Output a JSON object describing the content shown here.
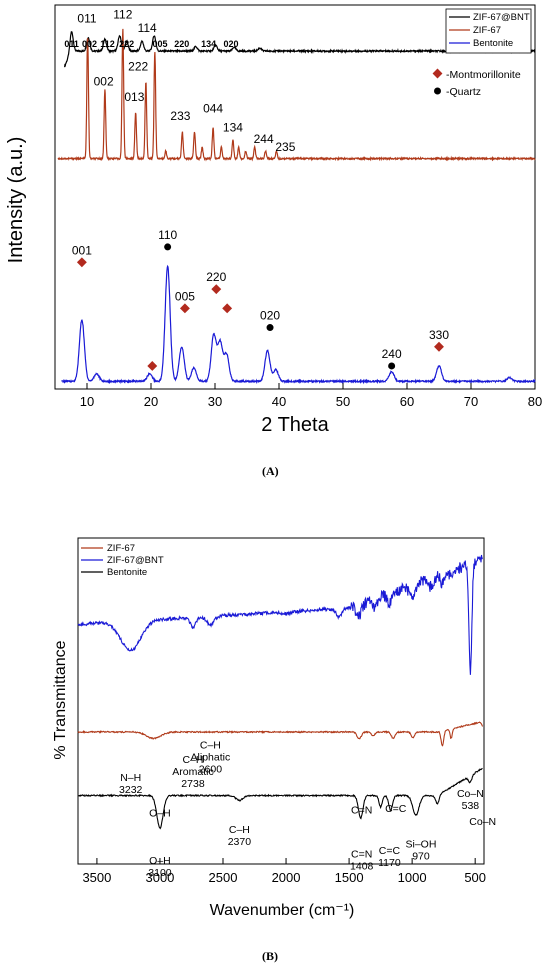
{
  "panel_a_label": "(A)",
  "panel_b_label": "(B)",
  "colors": {
    "black": "#000000",
    "red": "#b03a1a",
    "blue": "#1a1ad6",
    "marker_red": "#b22a1e"
  },
  "chart_data": [
    {
      "id": "A",
      "type": "line",
      "xlabel": "2 Theta",
      "ylabel": "Intensity (a.u.)",
      "xlim": [
        5,
        80
      ],
      "xticks": [
        "10",
        "20",
        "30",
        "40",
        "50",
        "60",
        "70",
        "80"
      ],
      "legend": {
        "position": "top-right",
        "entries": [
          {
            "name": "ZIF-67@BNT",
            "color": "#000000"
          },
          {
            "name": "ZIF-67",
            "color": "#b03a1a"
          },
          {
            "name": "Bentonite",
            "color": "#1a1ad6"
          }
        ]
      },
      "marker_legend": [
        {
          "symbol": "diamond",
          "label": "-Montmorillonite",
          "color": "#b22a1e"
        },
        {
          "symbol": "circle",
          "label": "-Quartz",
          "color": "#000000"
        }
      ],
      "series": [
        {
          "name": "ZIF-67@BNT",
          "color": "#000000",
          "baseline": 0.88,
          "peaks": [
            [
              7.6,
              0.05
            ],
            [
              10.2,
              0.035
            ],
            [
              12.8,
              0.03
            ],
            [
              15.1,
              0.04
            ],
            [
              16.2,
              0.025
            ],
            [
              18.6,
              0.025
            ],
            [
              20.5,
              0.04
            ],
            [
              27,
              0.012
            ],
            [
              30.1,
              0.015
            ],
            [
              33,
              0.01
            ],
            [
              37,
              0.008
            ]
          ]
        },
        {
          "name": "ZIF-67",
          "color": "#b03a1a",
          "baseline": 0.6,
          "peaks": [
            [
              10.1,
              0.32
            ],
            [
              12.8,
              0.18
            ],
            [
              15.6,
              0.34
            ],
            [
              17.6,
              0.12
            ],
            [
              19.2,
              0.2
            ],
            [
              20.6,
              0.28
            ],
            [
              22.3,
              0.02
            ],
            [
              24.9,
              0.07
            ],
            [
              26.8,
              0.07
            ],
            [
              28.0,
              0.03
            ],
            [
              29.7,
              0.08
            ],
            [
              31.0,
              0.03
            ],
            [
              32.8,
              0.05
            ],
            [
              33.7,
              0.03
            ],
            [
              34.8,
              0.02
            ],
            [
              36.2,
              0.03
            ],
            [
              37.9,
              0.02
            ],
            [
              39.6,
              0.02
            ]
          ]
        },
        {
          "name": "Bentonite",
          "color": "#1a1ad6",
          "baseline": 0.02,
          "peaks": [
            [
              9.2,
              0.16
            ],
            [
              11.5,
              0.02
            ],
            [
              19.8,
              0.02
            ],
            [
              22.6,
              0.3
            ],
            [
              24.8,
              0.09
            ],
            [
              26.7,
              0.035
            ],
            [
              29.8,
              0.12
            ],
            [
              30.8,
              0.1
            ],
            [
              31.8,
              0.07
            ],
            [
              38.2,
              0.08
            ],
            [
              39.5,
              0.03
            ],
            [
              57.6,
              0.025
            ],
            [
              65.0,
              0.04
            ],
            [
              76.0,
              0.01
            ]
          ]
        }
      ],
      "peak_labels_zif67bnt": [
        {
          "x": 7.6,
          "text": "011"
        },
        {
          "x": 10.4,
          "text": "002"
        },
        {
          "x": 13.2,
          "text": "112"
        },
        {
          "x": 16.2,
          "text": "222"
        },
        {
          "x": 21.4,
          "text": "005"
        },
        {
          "x": 24.8,
          "text": "220"
        },
        {
          "x": 29.0,
          "text": "134"
        },
        {
          "x": 32.5,
          "text": "020"
        }
      ],
      "peak_labels_zif67": [
        {
          "x": 10.0,
          "y": 0.955,
          "text": "011"
        },
        {
          "x": 12.6,
          "y": 0.79,
          "text": "002"
        },
        {
          "x": 15.6,
          "y": 0.965,
          "text": "112"
        },
        {
          "x": 19.4,
          "y": 0.93,
          "text": "114"
        },
        {
          "x": 18.0,
          "y": 0.83,
          "text": "222"
        },
        {
          "x": 17.4,
          "y": 0.75,
          "text": "013"
        },
        {
          "x": 24.6,
          "y": 0.7,
          "text": "233"
        },
        {
          "x": 29.7,
          "y": 0.72,
          "text": "044"
        },
        {
          "x": 32.8,
          "y": 0.67,
          "text": "134"
        },
        {
          "x": 37.6,
          "y": 0.64,
          "text": "244"
        },
        {
          "x": 41.0,
          "y": 0.62,
          "text": "235"
        }
      ],
      "peak_labels_bentonite": [
        {
          "x": 9.2,
          "y": 0.33,
          "text": "001",
          "marker": "diamond"
        },
        {
          "x": 20.2,
          "y": 0.06,
          "text": "",
          "marker": "diamond"
        },
        {
          "x": 22.6,
          "y": 0.37,
          "text": "110",
          "marker": "circle"
        },
        {
          "x": 25.3,
          "y": 0.21,
          "text": "005",
          "marker": "diamond"
        },
        {
          "x": 30.2,
          "y": 0.26,
          "text": "220",
          "marker": "diamond"
        },
        {
          "x": 31.9,
          "y": 0.21,
          "text": "",
          "marker": "diamond"
        },
        {
          "x": 38.6,
          "y": 0.16,
          "text": "020",
          "marker": "circle"
        },
        {
          "x": 57.6,
          "y": 0.06,
          "text": "240",
          "marker": "circle"
        },
        {
          "x": 65.0,
          "y": 0.11,
          "text": "330",
          "marker": "diamond"
        }
      ]
    },
    {
      "id": "B",
      "type": "line",
      "xlabel": "Wavenumber (cm⁻¹)",
      "ylabel": "% Transmittance",
      "xlim": [
        3650,
        430
      ],
      "xticks": [
        "3500",
        "3000",
        "2500",
        "2000",
        "1500",
        "1000",
        "500"
      ],
      "legend": {
        "position": "top-left",
        "entries": [
          {
            "name": "ZIF-67",
            "color": "#b03a1a"
          },
          {
            "name": "ZIF-67@BNT",
            "color": "#1a1ad6"
          },
          {
            "name": "Bentonite",
            "color": "#000000"
          }
        ]
      },
      "series": [
        {
          "name": "ZIF-67@BNT",
          "color": "#1a1ad6"
        },
        {
          "name": "ZIF-67",
          "color": "#b03a1a"
        },
        {
          "name": "Bentonite",
          "color": "#000000"
        }
      ],
      "annotations": [
        {
          "x": 3232,
          "y": 0.255,
          "lines": [
            "N–H",
            "3232"
          ]
        },
        {
          "x": 2738,
          "y": 0.31,
          "lines": [
            "C–H",
            "Aromatic",
            "2738"
          ]
        },
        {
          "x": 2600,
          "y": 0.355,
          "lines": [
            "C–H",
            "Aliphatic",
            "2600"
          ]
        },
        {
          "x": 538,
          "y": 0.205,
          "lines": [
            "Co–N",
            "538"
          ]
        },
        {
          "x": 3000,
          "y": 0.145,
          "lines": [
            "O–H"
          ]
        },
        {
          "x": 1400,
          "y": 0.155,
          "lines": [
            "C=N"
          ]
        },
        {
          "x": 1130,
          "y": 0.16,
          "lines": [
            "C=C"
          ]
        },
        {
          "x": 440,
          "y": 0.12,
          "lines": [
            "Co–N"
          ]
        },
        {
          "x": 3000,
          "y": 0.0,
          "lines": [
            "O–H",
            "3100"
          ]
        },
        {
          "x": 2370,
          "y": 0.095,
          "lines": [
            "C–H",
            "2370"
          ]
        },
        {
          "x": 1400,
          "y": 0.02,
          "lines": [
            "C=N",
            "1408"
          ]
        },
        {
          "x": 1180,
          "y": 0.03,
          "lines": [
            "C=C",
            "1170"
          ]
        },
        {
          "x": 930,
          "y": 0.05,
          "lines": [
            "Si–OH",
            "970"
          ]
        }
      ]
    }
  ]
}
